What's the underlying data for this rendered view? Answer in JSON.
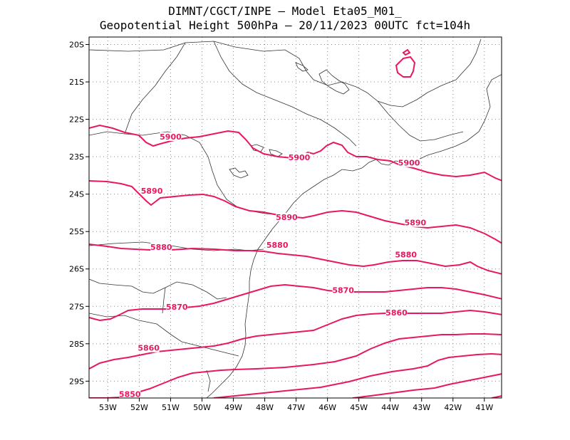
{
  "header": {
    "title_line1": "DIMNT/CGCT/INPE –  Model Eta05_M01_",
    "title_line2": "Geopotential Height 500hPa –  20/11/2023 00UTC fct=104h"
  },
  "map": {
    "lon_range": [
      -53.6,
      -40.45
    ],
    "lat_range": [
      -29.45,
      -19.8
    ],
    "x_ticks": [
      {
        "value": -53,
        "label": "53W"
      },
      {
        "value": -52,
        "label": "52W"
      },
      {
        "value": -51,
        "label": "51W"
      },
      {
        "value": -50,
        "label": "50W"
      },
      {
        "value": -49,
        "label": "49W"
      },
      {
        "value": -48,
        "label": "48W"
      },
      {
        "value": -47,
        "label": "47W"
      },
      {
        "value": -46,
        "label": "46W"
      },
      {
        "value": -45,
        "label": "45W"
      },
      {
        "value": -44,
        "label": "44W"
      },
      {
        "value": -43,
        "label": "43W"
      },
      {
        "value": -42,
        "label": "42W"
      },
      {
        "value": -41,
        "label": "41W"
      }
    ],
    "y_ticks": [
      {
        "value": -20,
        "label": "20S"
      },
      {
        "value": -21,
        "label": "21S"
      },
      {
        "value": -22,
        "label": "22S"
      },
      {
        "value": -23,
        "label": "23S"
      },
      {
        "value": -24,
        "label": "24S"
      },
      {
        "value": -25,
        "label": "25S"
      },
      {
        "value": -26,
        "label": "26S"
      },
      {
        "value": -27,
        "label": "27S"
      },
      {
        "value": -28,
        "label": "28S"
      },
      {
        "value": -29,
        "label": "29S"
      }
    ],
    "grid": "dotted",
    "contour_color": "#e8185f",
    "border_color": "#333333",
    "contour_labels": [
      {
        "text": "5900",
        "lon": -51.0,
        "lat": -22.5
      },
      {
        "text": "5900",
        "lon": -46.9,
        "lat": -23.05
      },
      {
        "text": "5900",
        "lon": -43.4,
        "lat": -23.2
      },
      {
        "text": "5890",
        "lon": -51.6,
        "lat": -23.95
      },
      {
        "text": "5890",
        "lon": -47.3,
        "lat": -24.65
      },
      {
        "text": "5890",
        "lon": -43.2,
        "lat": -24.8
      },
      {
        "text": "5880",
        "lon": -51.3,
        "lat": -25.45
      },
      {
        "text": "5880",
        "lon": -47.6,
        "lat": -25.4
      },
      {
        "text": "5880",
        "lon": -43.5,
        "lat": -25.65
      },
      {
        "text": "5870",
        "lon": -50.8,
        "lat": -27.05
      },
      {
        "text": "5870",
        "lon": -45.5,
        "lat": -26.6
      },
      {
        "text": "5860",
        "lon": -51.7,
        "lat": -28.15
      },
      {
        "text": "5860",
        "lon": -43.8,
        "lat": -27.2
      },
      {
        "text": "5850",
        "lon": -52.3,
        "lat": -29.38
      }
    ]
  }
}
